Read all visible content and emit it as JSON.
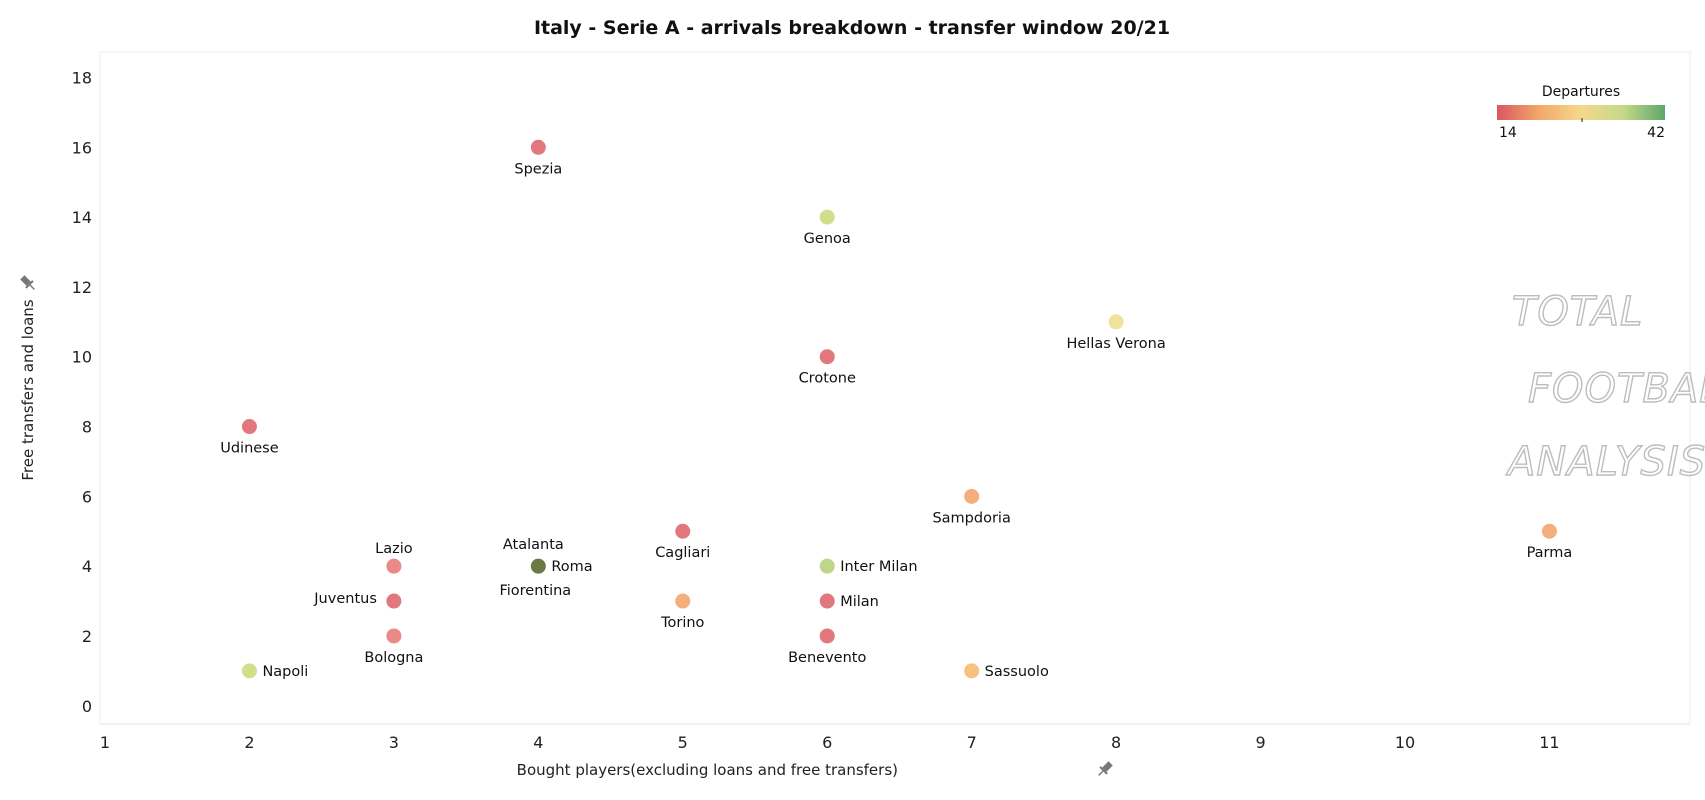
{
  "chart_data": {
    "type": "scatter",
    "title": "Italy - Serie A - arrivals breakdown - transfer window 20/21",
    "xlabel": "Bought players(excluding loans and free transfers)",
    "ylabel": "Free transfers and loans",
    "xlim": [
      1,
      11.8
    ],
    "ylim": [
      -0.35,
      18.5
    ],
    "xticks": [
      "1",
      "2",
      "3",
      "4",
      "5",
      "6",
      "7",
      "8",
      "9",
      "10",
      "11"
    ],
    "yticks": [
      "0",
      "2",
      "4",
      "6",
      "8",
      "10",
      "12",
      "14",
      "16",
      "18"
    ],
    "grid": false,
    "color_legend": {
      "title": "Departures",
      "min_label": "14",
      "max_label": "42",
      "placement": "top-right",
      "stops": [
        "#d9575f",
        "#f2a86a",
        "#f4d88a",
        "#c6d98a",
        "#5fa56b"
      ]
    },
    "points": [
      {
        "label": "Spezia",
        "x": 4,
        "y": 16,
        "color": "#e1787e",
        "label_pos": "below"
      },
      {
        "label": "Genoa",
        "x": 6,
        "y": 14,
        "color": "#d3de8c",
        "label_pos": "below"
      },
      {
        "label": "Hellas Verona",
        "x": 8,
        "y": 11,
        "color": "#efe29a",
        "label_pos": "below"
      },
      {
        "label": "Crotone",
        "x": 6,
        "y": 10,
        "color": "#e1787e",
        "label_pos": "below"
      },
      {
        "label": "Udinese",
        "x": 2,
        "y": 8,
        "color": "#e1787e",
        "label_pos": "below"
      },
      {
        "label": "Sampdoria",
        "x": 7,
        "y": 6,
        "color": "#f4ae7c",
        "label_pos": "below"
      },
      {
        "label": "Parma",
        "x": 11,
        "y": 5,
        "color": "#f4ae7c",
        "label_pos": "below"
      },
      {
        "label": "Cagliari",
        "x": 5,
        "y": 5,
        "color": "#e1787e",
        "label_pos": "below"
      },
      {
        "label": "Lazio",
        "x": 3,
        "y": 4,
        "color": "#e98a86",
        "label_pos": "above"
      },
      {
        "label": "Atalanta",
        "x": 4,
        "y": 4,
        "color": "#6b7a42",
        "label_pos": "above-left"
      },
      {
        "label": "Roma",
        "x": 4,
        "y": 4,
        "color": "#6b7a42",
        "label_pos": "right"
      },
      {
        "label": "Fiorentina",
        "x": 4,
        "y": 4,
        "color": "#6b7a42",
        "label_pos": "below-left"
      },
      {
        "label": "Inter Milan",
        "x": 6,
        "y": 4,
        "color": "#bfd58a",
        "label_pos": "right"
      },
      {
        "label": "Juventus",
        "x": 3,
        "y": 3,
        "color": "#e1787e",
        "label_pos": "left"
      },
      {
        "label": "Torino",
        "x": 5,
        "y": 3,
        "color": "#f4ae7c",
        "label_pos": "below"
      },
      {
        "label": "Milan",
        "x": 6,
        "y": 3,
        "color": "#e1787e",
        "label_pos": "right"
      },
      {
        "label": "Bologna",
        "x": 3,
        "y": 2,
        "color": "#e98a86",
        "label_pos": "below"
      },
      {
        "label": "Benevento",
        "x": 6,
        "y": 2,
        "color": "#e1787e",
        "label_pos": "below"
      },
      {
        "label": "Napoli",
        "x": 2,
        "y": 1,
        "color": "#d3de8c",
        "label_pos": "right"
      },
      {
        "label": "Sassuolo",
        "x": 7,
        "y": 1,
        "color": "#f6c27f",
        "label_pos": "right"
      }
    ]
  },
  "watermark": {
    "line1": "TOTAL",
    "line2": "FOOTBALL",
    "line3": "ANALYSIS"
  },
  "icons": {
    "axis_pin": "pin-icon"
  }
}
